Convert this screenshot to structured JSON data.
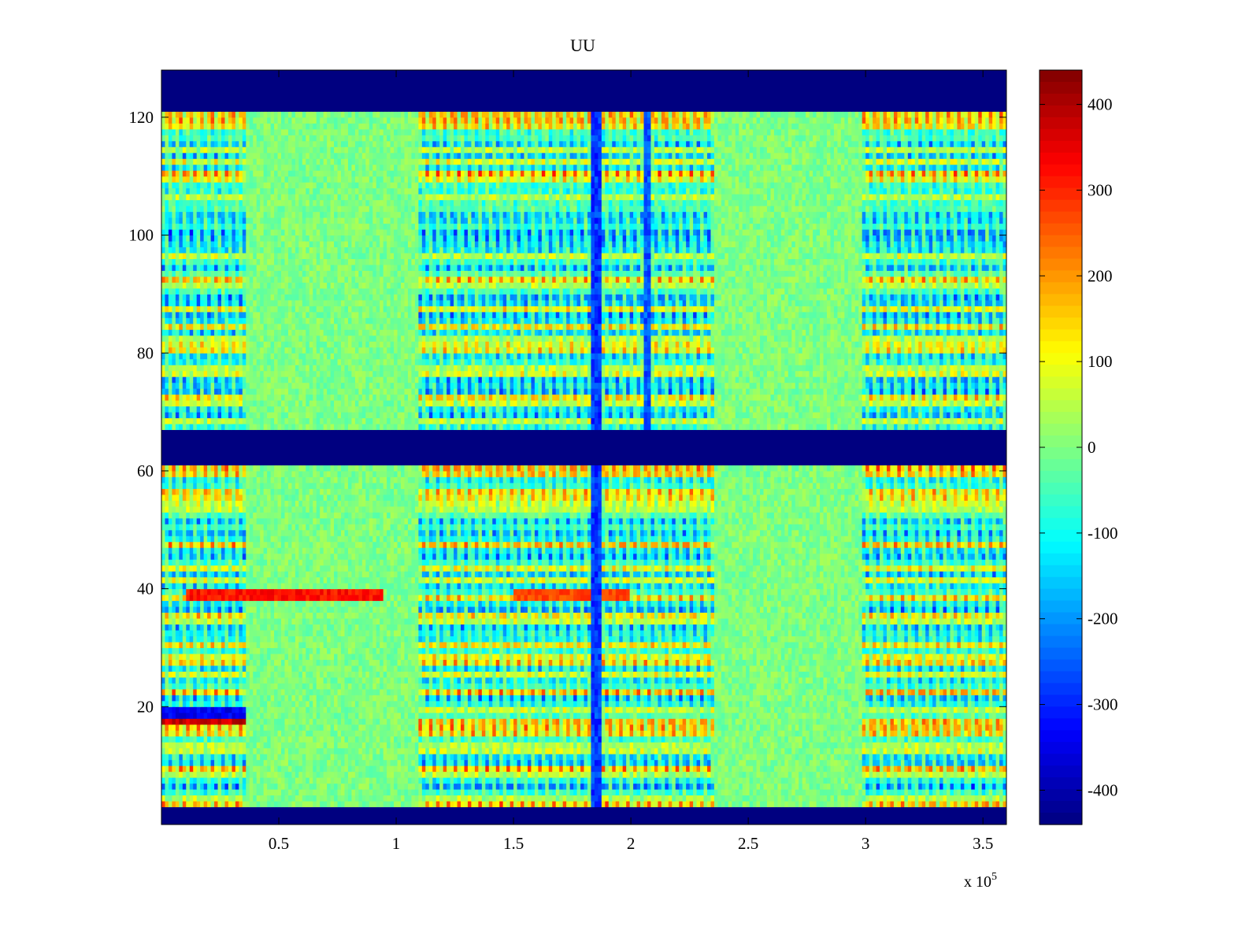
{
  "chart_data": {
    "type": "heatmap",
    "title": "UU",
    "x_exponent_label": "x 10",
    "x_exponent_power": "5",
    "x_range": [
      0,
      360000
    ],
    "y_range": [
      0,
      128
    ],
    "x_ticks": [
      {
        "value": 50000,
        "label": "0.5"
      },
      {
        "value": 100000,
        "label": "1"
      },
      {
        "value": 150000,
        "label": "1.5"
      },
      {
        "value": 200000,
        "label": "2"
      },
      {
        "value": 250000,
        "label": "2.5"
      },
      {
        "value": 300000,
        "label": "3"
      },
      {
        "value": 350000,
        "label": "3.5"
      }
    ],
    "y_ticks": [
      {
        "value": 20,
        "label": "20"
      },
      {
        "value": 40,
        "label": "40"
      },
      {
        "value": 60,
        "label": "60"
      },
      {
        "value": 80,
        "label": "80"
      },
      {
        "value": 100,
        "label": "100"
      },
      {
        "value": 120,
        "label": "120"
      }
    ],
    "colorbar": {
      "colormap": "jet",
      "range": [
        -440,
        440
      ],
      "ticks": [
        {
          "value": 400,
          "label": "400"
        },
        {
          "value": 300,
          "label": "300"
        },
        {
          "value": 200,
          "label": "200"
        },
        {
          "value": 100,
          "label": "100"
        },
        {
          "value": 0,
          "label": "0"
        },
        {
          "value": -100,
          "label": "-100"
        },
        {
          "value": -200,
          "label": "-200"
        },
        {
          "value": -300,
          "label": "-300"
        },
        {
          "value": -400,
          "label": "-400"
        }
      ]
    },
    "masked_y_bands": [
      [
        0,
        3
      ],
      [
        61,
        67
      ],
      [
        121,
        128
      ]
    ],
    "active_x_segments": [
      {
        "x": [
          0,
          36000
        ],
        "activity": "high"
      },
      {
        "x": [
          36000,
          109000
        ],
        "activity": "low"
      },
      {
        "x": [
          109000,
          160000
        ],
        "activity": "high"
      },
      {
        "x": [
          160000,
          236000
        ],
        "activity": "high"
      },
      {
        "x": [
          236000,
          299000
        ],
        "activity": "low"
      },
      {
        "x": [
          299000,
          360000
        ],
        "activity": "high"
      }
    ],
    "notable_features": [
      {
        "y": 39,
        "x": [
          10000,
          95000
        ],
        "value": 350
      },
      {
        "y": 39,
        "x": [
          150000,
          200000
        ],
        "value": 300
      },
      {
        "y": 18,
        "x": [
          0,
          36000
        ],
        "value": 420
      },
      {
        "y": 19,
        "x": [
          0,
          36000
        ],
        "value": -380
      },
      {
        "x": 185000,
        "y": [
          3,
          121
        ],
        "value": -330
      },
      {
        "x": 207000,
        "y": [
          67,
          121
        ],
        "value": -300
      }
    ]
  }
}
